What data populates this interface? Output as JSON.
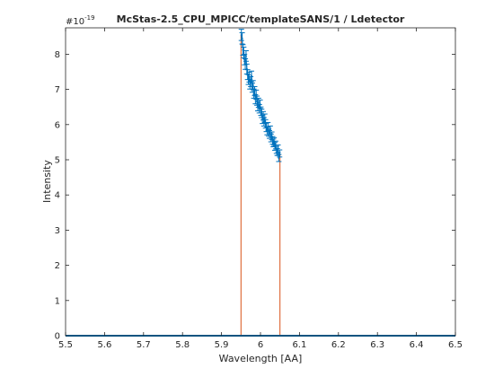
{
  "chart_data": {
    "type": "line",
    "title": "McStas-2.5_CPU_MPICC/templateSANS/1 / Ldetector",
    "xlabel": "Wavelength [AA]",
    "ylabel": "Intensity",
    "y_multiplier": "#10",
    "y_exponent": "-19",
    "xlim": [
      5.5,
      6.5
    ],
    "ylim": [
      0,
      8.75
    ],
    "xticks": [
      "5.5",
      "5.6",
      "5.7",
      "5.8",
      "5.9",
      "6",
      "6.1",
      "6.2",
      "6.3",
      "6.4",
      "6.5"
    ],
    "yticks": [
      "0",
      "1",
      "2",
      "3",
      "4",
      "5",
      "6",
      "7",
      "8"
    ],
    "grid": false,
    "colors": {
      "data": "#0072bd",
      "edge": "#d95319",
      "axis": "#262626"
    },
    "series": [
      {
        "x": [
          5.951,
          5.953,
          5.955,
          5.957,
          5.959,
          5.961,
          5.963,
          5.965,
          5.967,
          5.969,
          5.971,
          5.973,
          5.975,
          5.977,
          5.979,
          5.981,
          5.983,
          5.985,
          5.987,
          5.989,
          5.991,
          5.993,
          5.995,
          5.997,
          5.999,
          6.001,
          6.003,
          6.005,
          6.007,
          6.009,
          6.011,
          6.013,
          6.015,
          6.017,
          6.019,
          6.021,
          6.023,
          6.025,
          6.027,
          6.029,
          6.031,
          6.033,
          6.035,
          6.037,
          6.039,
          6.041,
          6.043,
          6.045,
          6.047,
          6.049
        ],
        "y": [
          8.55,
          8.45,
          8.12,
          8.05,
          7.85,
          7.72,
          7.95,
          7.58,
          7.42,
          7.28,
          7.35,
          7.15,
          7.22,
          7.38,
          7.05,
          7.12,
          6.88,
          6.95,
          6.72,
          6.85,
          6.68,
          6.52,
          6.62,
          6.45,
          6.58,
          6.38,
          6.32,
          6.15,
          6.25,
          6.08,
          6.18,
          6.02,
          5.92,
          5.82,
          5.95,
          5.78,
          5.72,
          5.85,
          5.62,
          5.68,
          5.55,
          5.48,
          5.52,
          5.38,
          5.42,
          5.28,
          5.22,
          5.32,
          5.05,
          5.18
        ],
        "err": [
          0.16,
          0.16,
          0.15,
          0.15,
          0.15,
          0.15,
          0.15,
          0.14,
          0.14,
          0.14,
          0.14,
          0.14,
          0.14,
          0.14,
          0.13,
          0.13,
          0.13,
          0.13,
          0.13,
          0.13,
          0.13,
          0.13,
          0.13,
          0.12,
          0.12,
          0.12,
          0.12,
          0.12,
          0.12,
          0.12,
          0.12,
          0.12,
          0.12,
          0.11,
          0.11,
          0.11,
          0.11,
          0.11,
          0.11,
          0.11,
          0.11,
          0.11,
          0.11,
          0.11,
          0.11,
          0.1,
          0.1,
          0.1,
          0.1,
          0.1
        ]
      }
    ]
  }
}
